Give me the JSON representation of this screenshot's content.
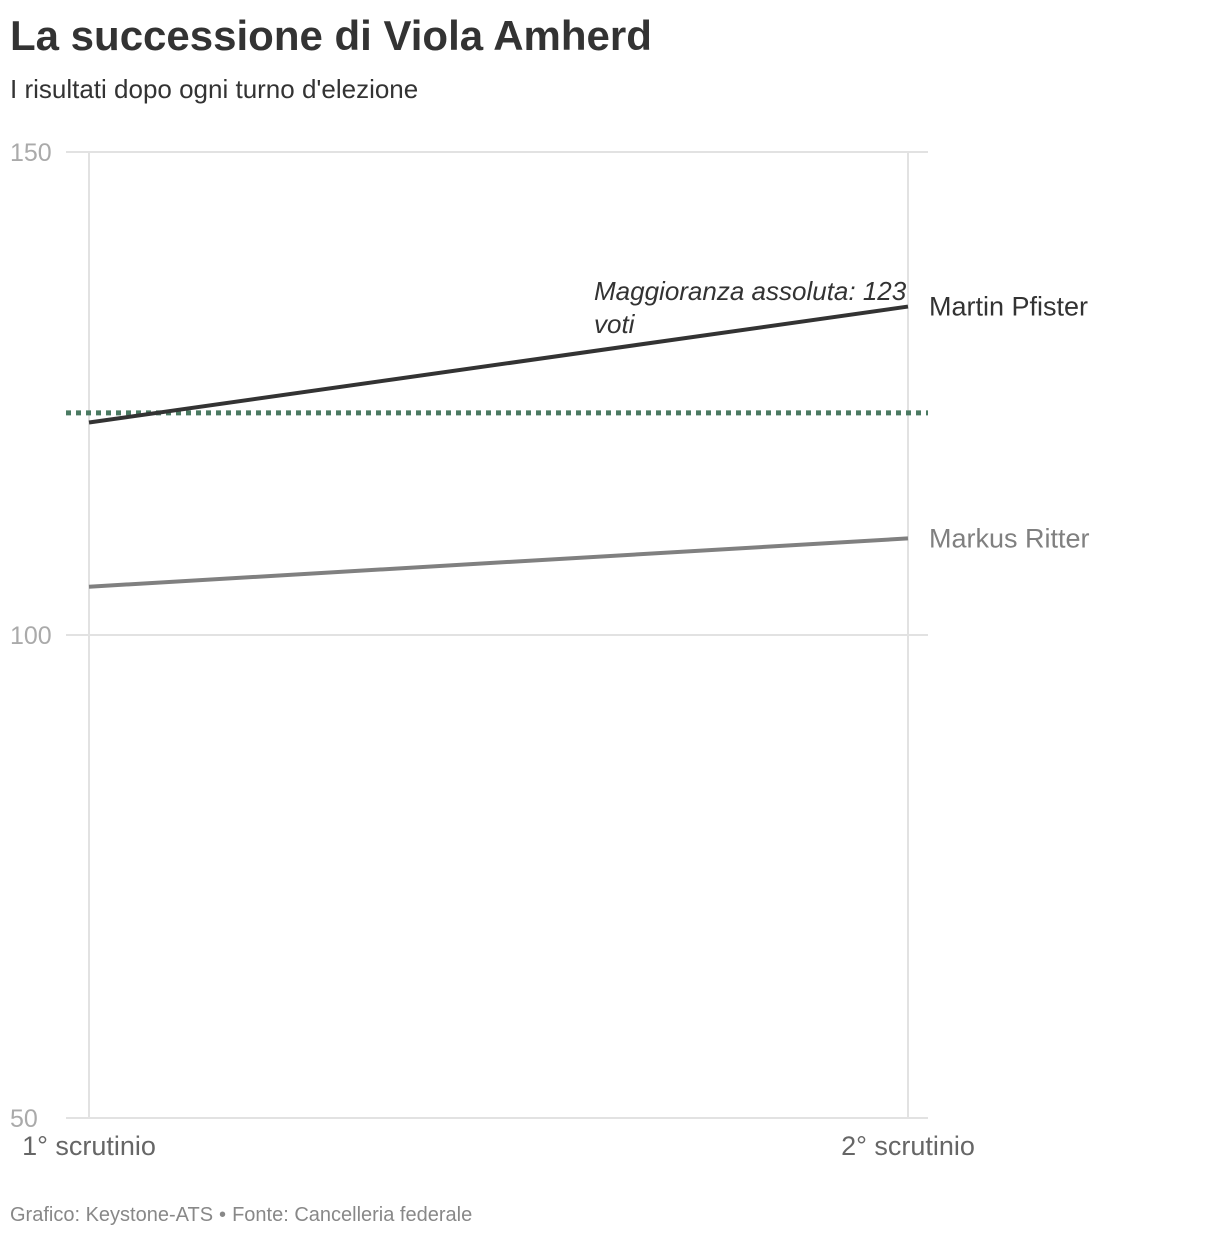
{
  "title": "La successione di Viola Amherd",
  "subtitle": "I risultati dopo ogni turno d'elezione",
  "footer": {
    "graphic": "Grafico: Keystone-ATS",
    "separator": "•",
    "source": "Fonte: Cancelleria federale"
  },
  "chart_data": {
    "type": "line",
    "title": "La successione di Viola Amherd",
    "subtitle": "I risultati dopo ogni turno d'elezione",
    "x": [
      "1° scrutinio",
      "2° scrutinio"
    ],
    "ylim": [
      50,
      150
    ],
    "yticks": [
      50,
      100,
      150
    ],
    "grid": true,
    "series": [
      {
        "name": "Martin Pfister",
        "values": [
          122,
          134
        ],
        "color": "#333333"
      },
      {
        "name": "Markus Ritter",
        "values": [
          105,
          110
        ],
        "color": "#808080"
      }
    ],
    "reference_line": {
      "value": 123,
      "label_line1": "Maggioranza assoluta: 123",
      "label_line2": "voti",
      "color": "#4a7a62",
      "style": "dotted"
    }
  }
}
